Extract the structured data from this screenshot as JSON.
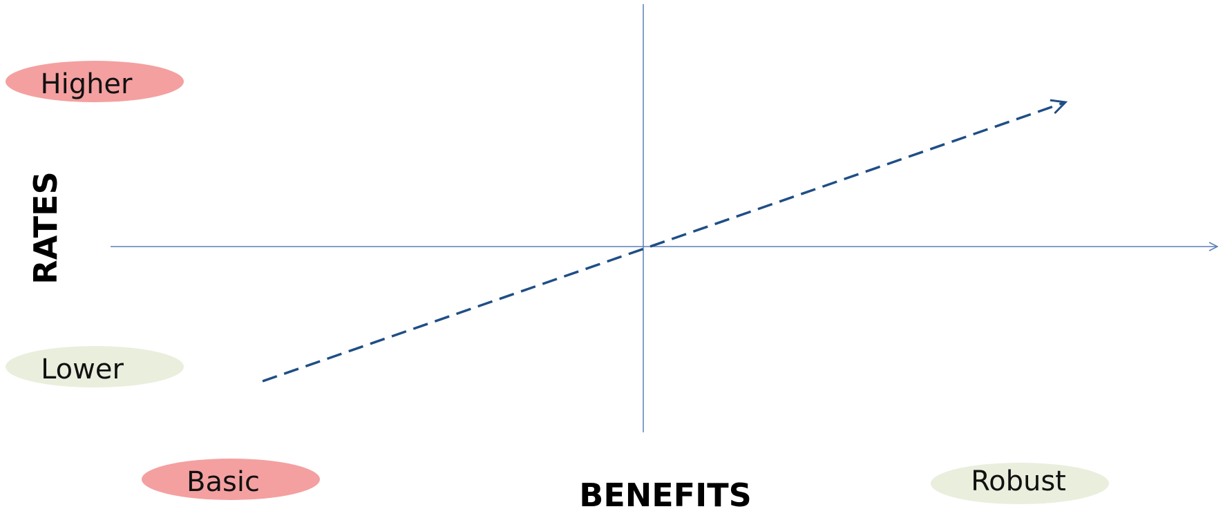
{
  "diagram": {
    "y_axis_title": "RATES",
    "x_axis_title": "BENEFITS",
    "y_levels": {
      "high": {
        "label": "Higher",
        "fill": "#f4a0a0"
      },
      "low": {
        "label": "Lower",
        "fill": "#eaeedd"
      }
    },
    "x_levels": {
      "low": {
        "label": "Basic",
        "fill": "#f4a0a0"
      },
      "high": {
        "label": "Robust",
        "fill": "#eaeedd"
      }
    },
    "colors": {
      "axis": "#5b7fb8",
      "trend": "#1f4e85"
    }
  }
}
